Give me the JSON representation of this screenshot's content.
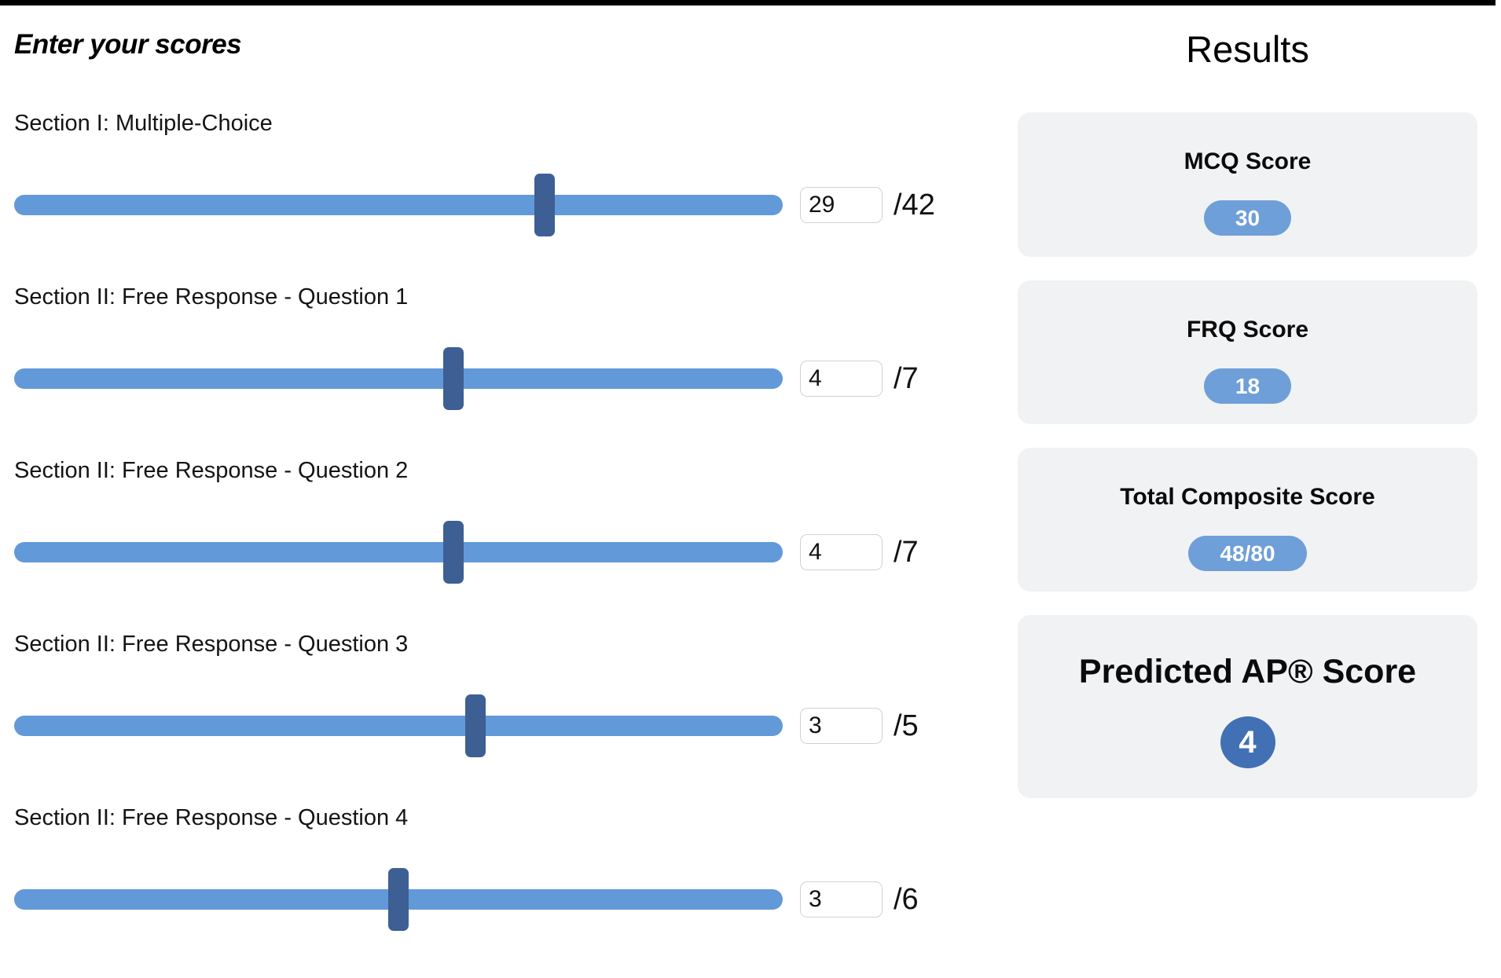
{
  "left": {
    "heading": "Enter your scores"
  },
  "sliders": [
    {
      "label": "Section I: Multiple-Choice",
      "value": "29",
      "max": 42,
      "max_label": "/42"
    },
    {
      "label": "Section II: Free Response - Question 1",
      "value": "4",
      "max": 7,
      "max_label": "/7"
    },
    {
      "label": "Section II: Free Response - Question 2",
      "value": "4",
      "max": 7,
      "max_label": "/7"
    },
    {
      "label": "Section II: Free Response - Question 3",
      "value": "3",
      "max": 5,
      "max_label": "/5"
    },
    {
      "label": "Section II: Free Response - Question 4",
      "value": "3",
      "max": 6,
      "max_label": "/6"
    }
  ],
  "results": {
    "heading": "Results",
    "cards": [
      {
        "title": "MCQ Score",
        "value": "30",
        "style": "pill"
      },
      {
        "title": "FRQ Score",
        "value": "18",
        "style": "pill"
      },
      {
        "title": "Total Composite Score",
        "value": "48/80",
        "style": "pill"
      },
      {
        "title": "Predicted AP® Score",
        "value": "4",
        "style": "circle"
      }
    ]
  },
  "colors": {
    "top_bar": "#000000",
    "slider_track": "#6299d9",
    "slider_thumb": "#3e5f94",
    "pill_bg": "#6f9fd8",
    "predicted_circle_bg": "#4170b4",
    "card_bg": "#f1f2f3"
  }
}
